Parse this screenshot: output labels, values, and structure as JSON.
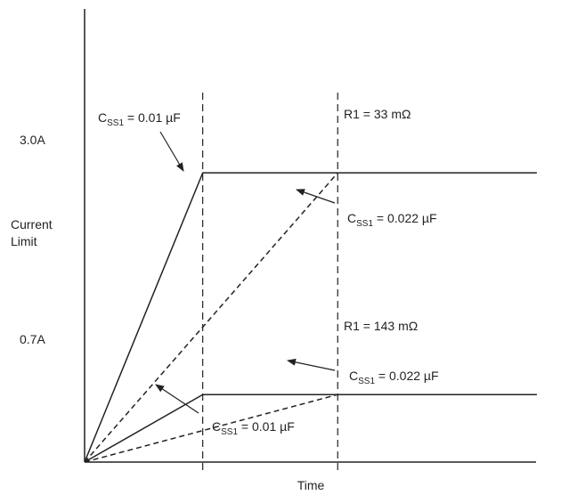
{
  "chart_data": {
    "type": "line",
    "title": "",
    "xlabel": "Time",
    "ylabel": "Current Limit",
    "x_ticks": [],
    "y_ticks": [
      "0.7A",
      "3.0A"
    ],
    "ylim": [
      0,
      4.7
    ],
    "xlim": [
      0,
      13.4
    ],
    "reference_lines_x": [
      3.5,
      7.5
    ],
    "series": [
      {
        "style": "solid",
        "points": [
          [
            0,
            0
          ],
          [
            3.5,
            3.0
          ],
          [
            13.4,
            3.0
          ]
        ]
      },
      {
        "style": "dashed",
        "points": [
          [
            0,
            0
          ],
          [
            7.5,
            3.0
          ]
        ]
      },
      {
        "style": "solid",
        "points": [
          [
            0,
            0
          ],
          [
            3.5,
            0.7
          ],
          [
            7.5,
            0.7
          ],
          [
            13.4,
            0.7
          ]
        ]
      },
      {
        "style": "dashed",
        "points": [
          [
            0,
            0
          ],
          [
            7.5,
            0.7
          ]
        ]
      }
    ],
    "annotations": [
      {
        "main": "C",
        "sub": "SS1",
        "rest": " = 0.01 µF"
      },
      {
        "main": "R1 = 33 mΩ",
        "sub": "",
        "rest": ""
      },
      {
        "main": "C",
        "sub": "SS1",
        "rest": " = 0.022 µF"
      },
      {
        "main": "R1 = 143 mΩ",
        "sub": "",
        "rest": ""
      },
      {
        "main": "C",
        "sub": "SS1",
        "rest": " = 0.022 µF"
      },
      {
        "main": "C",
        "sub": "SS1",
        "rest": " = 0.01 µF"
      }
    ]
  }
}
